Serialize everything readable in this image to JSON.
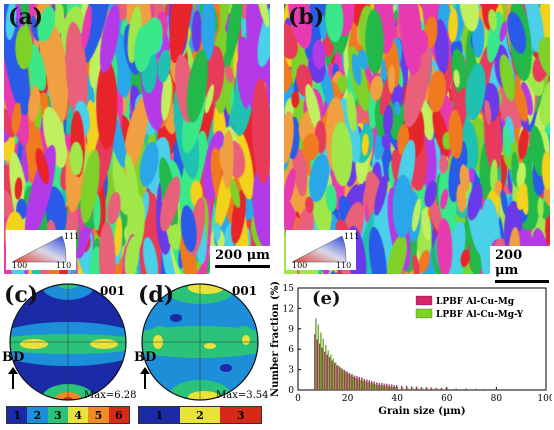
{
  "panels": {
    "a": {
      "label": "(a)",
      "scale": "200 μm",
      "ipf": {
        "c1": "100",
        "c2": "110",
        "c3": "111"
      }
    },
    "b": {
      "label": "(b)",
      "scale": "200 μm",
      "ipf": {
        "c1": "100",
        "c2": "110",
        "c3": "111"
      }
    },
    "c": {
      "label": "(c)",
      "title": "001",
      "max": "Max=6.28",
      "bd": "BD",
      "colorbar": [
        "1",
        "2",
        "3",
        "4",
        "5",
        "6"
      ]
    },
    "d": {
      "label": "(d)",
      "title": "001",
      "max": "Max=3.54",
      "bd": "BD",
      "colorbar": [
        "1",
        "2",
        "3"
      ]
    },
    "e": {
      "label": "(e)"
    }
  },
  "colors": {
    "series1": "#d6216b",
    "series2": "#7ed321",
    "cmap": [
      "#1b2aa6",
      "#1c8fd8",
      "#2bc27a",
      "#e8e23a",
      "#f08a24",
      "#d62a18"
    ]
  },
  "chart_data": {
    "type": "bar",
    "xlabel": "Grain size (μm)",
    "ylabel": "Number fraction (%)",
    "xlim": [
      0,
      100
    ],
    "ylim": [
      0,
      15
    ],
    "xticks": [
      "0",
      "20",
      "40",
      "60",
      "80",
      "100"
    ],
    "yticks": [
      "0",
      "3",
      "6",
      "9",
      "12",
      "15"
    ],
    "legend_position": "top-right",
    "x": [
      7,
      8,
      9,
      10,
      11,
      12,
      13,
      14,
      15,
      16,
      17,
      18,
      19,
      20,
      21,
      22,
      23,
      24,
      25,
      26,
      27,
      28,
      29,
      30,
      31,
      32,
      33,
      34,
      35,
      36,
      37,
      38,
      39,
      40,
      42,
      44,
      46,
      48,
      50,
      52,
      54,
      56,
      58,
      60,
      64,
      68,
      72,
      76,
      80
    ],
    "series": [
      {
        "name": "LPBF Al-Cu-Mg",
        "values": [
          8.2,
          7.4,
          6.8,
          6.2,
          5.6,
          5.2,
          4.8,
          4.3,
          4.0,
          3.6,
          3.4,
          3.1,
          2.9,
          2.7,
          2.5,
          2.3,
          2.1,
          2.0,
          1.9,
          1.8,
          1.6,
          1.5,
          1.4,
          1.3,
          1.2,
          1.1,
          1.0,
          1.0,
          0.9,
          0.9,
          0.8,
          0.8,
          0.7,
          0.7,
          0.6,
          0.6,
          0.5,
          0.5,
          0.4,
          0.4,
          0.35,
          0.3,
          0.3,
          0.25,
          0.2,
          0.2,
          0.15,
          0.1,
          0.1
        ]
      },
      {
        "name": "LPBF Al-Cu-Mg-Y",
        "values": [
          10.5,
          9.6,
          8.4,
          7.5,
          6.6,
          5.8,
          5.2,
          4.6,
          4.0,
          3.6,
          3.2,
          2.9,
          2.6,
          2.3,
          2.1,
          1.9,
          1.7,
          1.6,
          1.4,
          1.3,
          1.2,
          1.1,
          1.0,
          0.9,
          0.8,
          0.7,
          0.7,
          0.6,
          0.6,
          0.5,
          0.5,
          0.4,
          0.4,
          0.4,
          0.3,
          0.3,
          0.3,
          0.25,
          0.2,
          0.2,
          0.2,
          0.15,
          0.15,
          0.1,
          0.1,
          0.1,
          0.05,
          0.05,
          0.05
        ]
      }
    ]
  }
}
